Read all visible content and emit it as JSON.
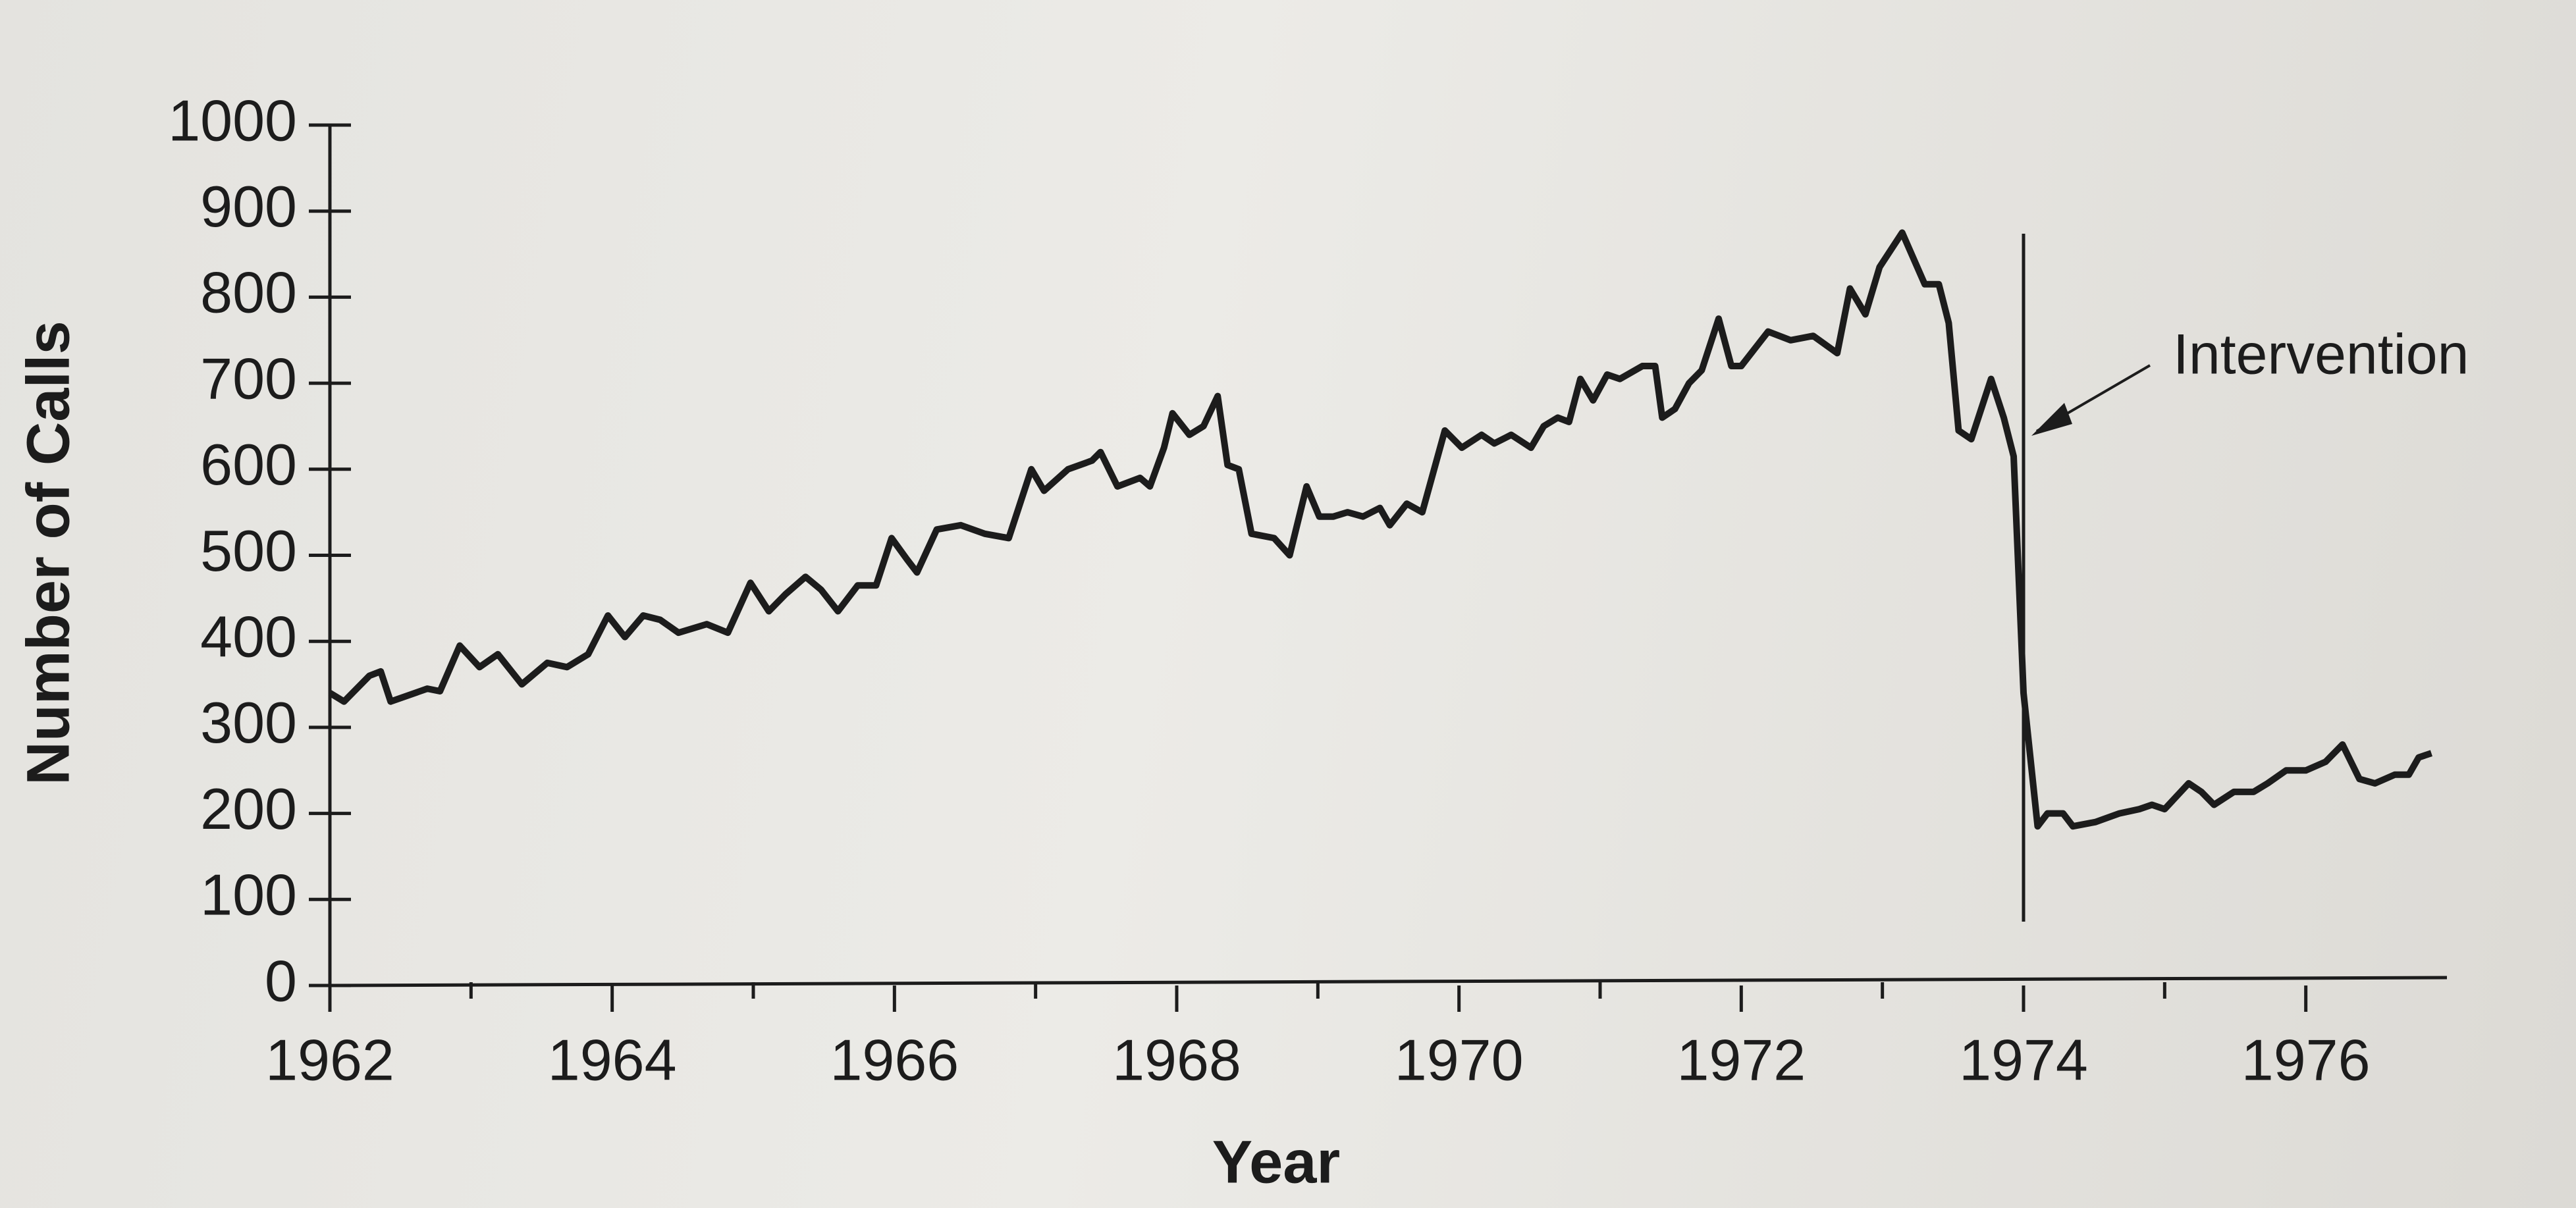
{
  "chart_data": {
    "type": "line",
    "x_label": "Year",
    "y_label": "Number of Calls",
    "color": "#1c1c1c",
    "x": [
      1962.0,
      1962.1,
      1962.28,
      1962.36,
      1962.43,
      1962.69,
      1962.78,
      1962.92,
      1963.06,
      1963.19,
      1963.36,
      1963.54,
      1963.68,
      1963.83,
      1963.97,
      1964.09,
      1964.22,
      1964.34,
      1964.47,
      1964.67,
      1964.82,
      1964.98,
      1965.11,
      1965.23,
      1965.37,
      1965.48,
      1965.6,
      1965.74,
      1965.87,
      1965.98,
      1966.09,
      1966.16,
      1966.3,
      1966.47,
      1966.64,
      1966.81,
      1966.97,
      1967.06,
      1967.23,
      1967.4,
      1967.46,
      1967.58,
      1967.74,
      1967.81,
      1967.91,
      1967.97,
      1968.09,
      1968.19,
      1968.29,
      1968.36,
      1968.44,
      1968.53,
      1968.69,
      1968.8,
      1968.92,
      1969.01,
      1969.11,
      1969.21,
      1969.32,
      1969.44,
      1969.51,
      1969.63,
      1969.74,
      1969.9,
      1970.02,
      1970.16,
      1970.25,
      1970.37,
      1970.51,
      1970.6,
      1970.7,
      1970.78,
      1970.86,
      1970.95,
      1971.05,
      1971.14,
      1971.3,
      1971.39,
      1971.44,
      1971.53,
      1971.63,
      1971.72,
      1971.84,
      1971.93,
      1972.0,
      1972.19,
      1972.35,
      1972.51,
      1972.68,
      1972.77,
      1972.88,
      1972.98,
      1973.14,
      1973.3,
      1973.4,
      1973.47,
      1973.54,
      1973.63,
      1973.77,
      1973.86,
      1973.93,
      1974.0,
      1974.1,
      1974.17,
      1974.28,
      1974.35,
      1974.51,
      1974.68,
      1974.82,
      1974.91,
      1975.0,
      1975.17,
      1975.26,
      1975.35,
      1975.49,
      1975.63,
      1975.73,
      1975.86,
      1976.0,
      1976.14,
      1976.26,
      1976.38,
      1976.49,
      1976.63,
      1976.73,
      1976.8,
      1976.89
    ],
    "values": [
      340,
      330,
      360,
      365,
      330,
      345,
      342,
      395,
      370,
      385,
      350,
      375,
      370,
      385,
      430,
      405,
      430,
      425,
      410,
      420,
      410,
      468,
      435,
      455,
      475,
      460,
      435,
      465,
      465,
      520,
      495,
      480,
      530,
      535,
      525,
      520,
      600,
      575,
      600,
      610,
      620,
      580,
      590,
      580,
      625,
      665,
      640,
      650,
      685,
      605,
      600,
      525,
      520,
      500,
      580,
      545,
      545,
      550,
      545,
      555,
      535,
      560,
      550,
      645,
      625,
      640,
      630,
      640,
      625,
      650,
      660,
      655,
      705,
      680,
      710,
      705,
      720,
      720,
      660,
      670,
      700,
      715,
      775,
      720,
      720,
      760,
      750,
      755,
      735,
      810,
      780,
      835,
      875,
      815,
      815,
      770,
      645,
      635,
      705,
      660,
      615,
      340,
      185,
      200,
      200,
      185,
      190,
      200,
      205,
      210,
      205,
      235,
      225,
      210,
      225,
      225,
      235,
      250,
      250,
      260,
      280,
      240,
      235,
      245,
      245,
      265,
      270
    ],
    "xlim": [
      1962,
      1977
    ],
    "ylim": [
      0,
      1000
    ],
    "xticks": [
      1962,
      1964,
      1966,
      1968,
      1970,
      1972,
      1974,
      1976
    ],
    "xminorticks": [
      1963,
      1965,
      1967,
      1969,
      1971,
      1973,
      1975
    ],
    "yticks": [
      0,
      100,
      200,
      300,
      400,
      500,
      600,
      700,
      800,
      900,
      1000
    ],
    "intervention": {
      "x": 1974,
      "label": "Intervention"
    }
  }
}
